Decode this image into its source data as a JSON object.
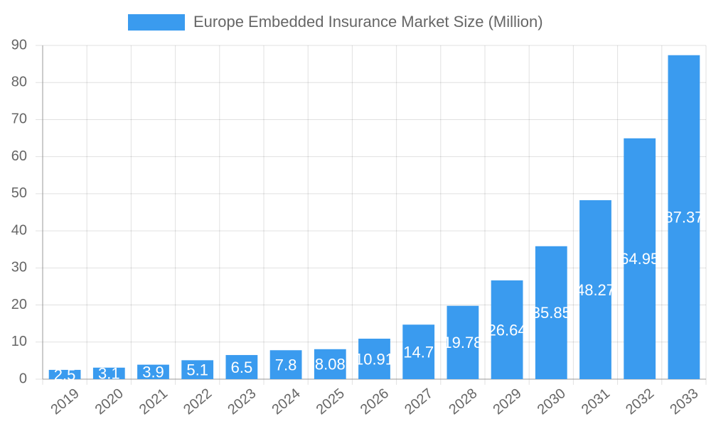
{
  "chart_data": {
    "type": "bar",
    "legend_label": "Europe Embedded Insurance Market Size (Million)",
    "categories": [
      "2019",
      "2020",
      "2021",
      "2022",
      "2023",
      "2024",
      "2025",
      "2026",
      "2027",
      "2028",
      "2029",
      "2030",
      "2031",
      "2032",
      "2033"
    ],
    "values": [
      2.5,
      3.1,
      3.9,
      5.1,
      6.5,
      7.8,
      8.08,
      10.91,
      14.7,
      19.78,
      26.64,
      35.85,
      48.27,
      64.95,
      87.37
    ],
    "color": "#3a9bef",
    "ylim": [
      0,
      90
    ],
    "yticks": [
      0,
      10,
      20,
      30,
      40,
      50,
      60,
      70,
      80,
      90
    ],
    "grid": true
  }
}
